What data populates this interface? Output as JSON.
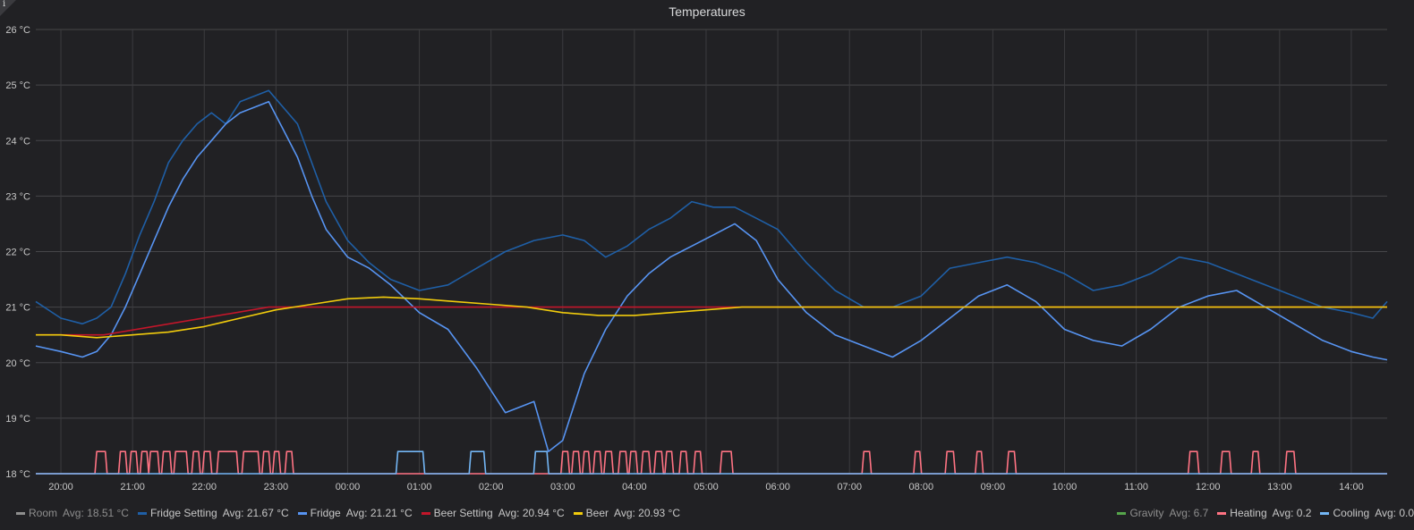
{
  "panel": {
    "info_icon": "info-icon",
    "info_glyph": "i"
  },
  "chart_data": {
    "type": "line",
    "title": "Temperatures",
    "grid": true,
    "legend_placement": "bottom",
    "x_unit": "time (hours, 19:40 to 14:20)",
    "x_range": [
      19.65,
      38.5
    ],
    "ylim": [
      18,
      26
    ],
    "y_ticks": [
      {
        "v": 18,
        "label": "18 °C"
      },
      {
        "v": 19,
        "label": "19 °C"
      },
      {
        "v": 20,
        "label": "20 °C"
      },
      {
        "v": 21,
        "label": "21 °C"
      },
      {
        "v": 22,
        "label": "22 °C"
      },
      {
        "v": 23,
        "label": "23 °C"
      },
      {
        "v": 24,
        "label": "24 °C"
      },
      {
        "v": 25,
        "label": "25 °C"
      },
      {
        "v": 26,
        "label": "26 °C"
      }
    ],
    "x_ticks": [
      {
        "v": 20,
        "label": "20:00"
      },
      {
        "v": 21,
        "label": "21:00"
      },
      {
        "v": 22,
        "label": "22:00"
      },
      {
        "v": 23,
        "label": "23:00"
      },
      {
        "v": 24,
        "label": "00:00"
      },
      {
        "v": 25,
        "label": "01:00"
      },
      {
        "v": 26,
        "label": "02:00"
      },
      {
        "v": 27,
        "label": "03:00"
      },
      {
        "v": 28,
        "label": "04:00"
      },
      {
        "v": 29,
        "label": "05:00"
      },
      {
        "v": 30,
        "label": "06:00"
      },
      {
        "v": 31,
        "label": "07:00"
      },
      {
        "v": 32,
        "label": "08:00"
      },
      {
        "v": 33,
        "label": "09:00"
      },
      {
        "v": 34,
        "label": "10:00"
      },
      {
        "v": 35,
        "label": "11:00"
      },
      {
        "v": 36,
        "label": "12:00"
      },
      {
        "v": 37,
        "label": "13:00"
      },
      {
        "v": 38,
        "label": "14:00"
      }
    ],
    "series": [
      {
        "name": "Fridge Setting",
        "color": "#1f5fa6",
        "width": 1.6,
        "x": [
          19.65,
          20.0,
          20.3,
          20.5,
          20.7,
          20.9,
          21.1,
          21.3,
          21.5,
          21.7,
          21.9,
          22.1,
          22.3,
          22.5,
          22.7,
          22.9,
          23.1,
          23.3,
          23.5,
          23.7,
          24.0,
          24.3,
          24.6,
          25.0,
          25.4,
          25.8,
          26.2,
          26.6,
          27.0,
          27.3,
          27.6,
          27.9,
          28.2,
          28.5,
          28.8,
          29.1,
          29.4,
          29.7,
          30.0,
          30.4,
          30.8,
          31.2,
          31.6,
          32.0,
          32.4,
          32.8,
          33.2,
          33.6,
          34.0,
          34.4,
          34.8,
          35.2,
          35.6,
          36.0,
          36.4,
          36.8,
          37.2,
          37.6,
          38.0,
          38.3,
          38.5
        ],
        "y": [
          21.1,
          20.8,
          20.7,
          20.8,
          21.0,
          21.6,
          22.3,
          22.9,
          23.6,
          24.0,
          24.3,
          24.5,
          24.3,
          24.7,
          24.8,
          24.9,
          24.6,
          24.3,
          23.6,
          22.9,
          22.2,
          21.8,
          21.5,
          21.3,
          21.4,
          21.7,
          22.0,
          22.2,
          22.3,
          22.2,
          21.9,
          22.1,
          22.4,
          22.6,
          22.9,
          22.8,
          22.8,
          22.6,
          22.4,
          21.8,
          21.3,
          21.0,
          21.0,
          21.2,
          21.7,
          21.8,
          21.9,
          21.8,
          21.6,
          21.3,
          21.4,
          21.6,
          21.9,
          21.8,
          21.6,
          21.4,
          21.2,
          21.0,
          20.9,
          20.8,
          21.1
        ]
      },
      {
        "name": "Fridge",
        "color": "#5794f2",
        "width": 1.6,
        "x": [
          19.65,
          20.0,
          20.3,
          20.5,
          20.7,
          20.9,
          21.1,
          21.3,
          21.5,
          21.7,
          21.9,
          22.1,
          22.3,
          22.5,
          22.7,
          22.9,
          23.1,
          23.3,
          23.5,
          23.7,
          24.0,
          24.3,
          24.6,
          25.0,
          25.4,
          25.8,
          26.2,
          26.4,
          26.6,
          26.8,
          27.0,
          27.3,
          27.6,
          27.9,
          28.2,
          28.5,
          28.8,
          29.1,
          29.4,
          29.7,
          30.0,
          30.4,
          30.8,
          31.2,
          31.6,
          32.0,
          32.4,
          32.8,
          33.2,
          33.6,
          34.0,
          34.4,
          34.8,
          35.2,
          35.6,
          36.0,
          36.4,
          36.8,
          37.2,
          37.6,
          38.0,
          38.3,
          38.5
        ],
        "y": [
          20.3,
          20.2,
          20.1,
          20.2,
          20.5,
          21.0,
          21.6,
          22.2,
          22.8,
          23.3,
          23.7,
          24.0,
          24.3,
          24.5,
          24.6,
          24.7,
          24.2,
          23.7,
          23.0,
          22.4,
          21.9,
          21.7,
          21.4,
          20.9,
          20.6,
          19.9,
          19.1,
          19.2,
          19.3,
          18.4,
          18.6,
          19.8,
          20.6,
          21.2,
          21.6,
          21.9,
          22.1,
          22.3,
          22.5,
          22.2,
          21.5,
          20.9,
          20.5,
          20.3,
          20.1,
          20.4,
          20.8,
          21.2,
          21.4,
          21.1,
          20.6,
          20.4,
          20.3,
          20.6,
          21.0,
          21.2,
          21.3,
          21.0,
          20.7,
          20.4,
          20.2,
          20.1,
          20.05
        ]
      },
      {
        "name": "Beer Setting",
        "color": "#c4162a",
        "width": 1.6,
        "x": [
          19.65,
          20.6,
          22.9,
          38.5
        ],
        "y": [
          20.5,
          20.5,
          21.0,
          21.0
        ]
      },
      {
        "name": "Beer",
        "color": "#f2cc0c",
        "width": 1.6,
        "x": [
          19.65,
          20.0,
          20.5,
          21.0,
          21.5,
          22.0,
          22.5,
          23.0,
          23.5,
          24.0,
          24.5,
          25.0,
          25.5,
          26.0,
          26.5,
          27.0,
          27.5,
          28.0,
          28.5,
          29.0,
          29.5,
          30.0,
          30.5,
          31.0,
          31.5,
          32.0,
          33.0,
          34.0,
          35.0,
          36.0,
          37.0,
          38.0,
          38.5
        ],
        "y": [
          20.5,
          20.5,
          20.45,
          20.5,
          20.55,
          20.65,
          20.8,
          20.95,
          21.05,
          21.15,
          21.18,
          21.15,
          21.1,
          21.05,
          21.0,
          20.9,
          20.85,
          20.85,
          20.9,
          20.95,
          21.0,
          21.0,
          21.0,
          21.0,
          21.0,
          21.0,
          21.0,
          21.0,
          21.0,
          21.0,
          21.0,
          21.0,
          21.0
        ]
      },
      {
        "name": "Heating",
        "color": "#ff7383",
        "width": 1.6,
        "type": "pulses",
        "base": 18,
        "top": 18.4,
        "pulses": [
          [
            20.5,
            20.62
          ],
          [
            20.83,
            20.9
          ],
          [
            20.98,
            21.05
          ],
          [
            21.13,
            21.2
          ],
          [
            21.25,
            21.35
          ],
          [
            21.43,
            21.52
          ],
          [
            21.6,
            21.75
          ],
          [
            21.85,
            21.92
          ],
          [
            22.0,
            22.08
          ],
          [
            22.2,
            22.45
          ],
          [
            22.55,
            22.75
          ],
          [
            22.83,
            22.9
          ],
          [
            22.98,
            23.04
          ],
          [
            23.15,
            23.22
          ],
          [
            27.0,
            27.07
          ],
          [
            27.15,
            27.22
          ],
          [
            27.3,
            27.36
          ],
          [
            27.45,
            27.52
          ],
          [
            27.6,
            27.68
          ],
          [
            27.8,
            27.88
          ],
          [
            27.95,
            28.02
          ],
          [
            28.12,
            28.2
          ],
          [
            28.3,
            28.38
          ],
          [
            28.45,
            28.52
          ],
          [
            28.65,
            28.72
          ],
          [
            28.85,
            28.92
          ],
          [
            29.22,
            29.35
          ],
          [
            31.2,
            31.28
          ],
          [
            31.92,
            31.98
          ],
          [
            32.36,
            32.45
          ],
          [
            32.78,
            32.84
          ],
          [
            33.22,
            33.3
          ],
          [
            35.75,
            35.85
          ],
          [
            36.2,
            36.3
          ],
          [
            36.63,
            36.7
          ],
          [
            37.1,
            37.2
          ]
        ]
      },
      {
        "name": "Cooling",
        "color": "#73b6f5",
        "width": 1.6,
        "type": "pulses",
        "base": 18,
        "top": 18.4,
        "pulses": [
          [
            24.7,
            25.05
          ],
          [
            25.72,
            25.9
          ],
          [
            26.62,
            26.78
          ]
        ]
      }
    ],
    "legend": {
      "left": [
        {
          "name": "Room",
          "avg": "Avg: 18.51 °C",
          "color": "#8e8e8e",
          "hidden": true
        },
        {
          "name": "Fridge Setting",
          "avg": "Avg: 21.67 °C",
          "color": "#1f5fa6"
        },
        {
          "name": "Fridge",
          "avg": "Avg: 21.21 °C",
          "color": "#5794f2"
        },
        {
          "name": "Beer Setting",
          "avg": "Avg: 20.94 °C",
          "color": "#c4162a"
        },
        {
          "name": "Beer",
          "avg": "Avg: 20.93 °C",
          "color": "#f2cc0c"
        }
      ],
      "right": [
        {
          "name": "Gravity",
          "avg": "Avg: 6.7",
          "color": "#56a64b",
          "hidden": true
        },
        {
          "name": "Heating",
          "avg": "Avg: 0.2",
          "color": "#ff7383"
        },
        {
          "name": "Cooling",
          "avg": "Avg: 0.0",
          "color": "#73b6f5"
        }
      ]
    }
  }
}
